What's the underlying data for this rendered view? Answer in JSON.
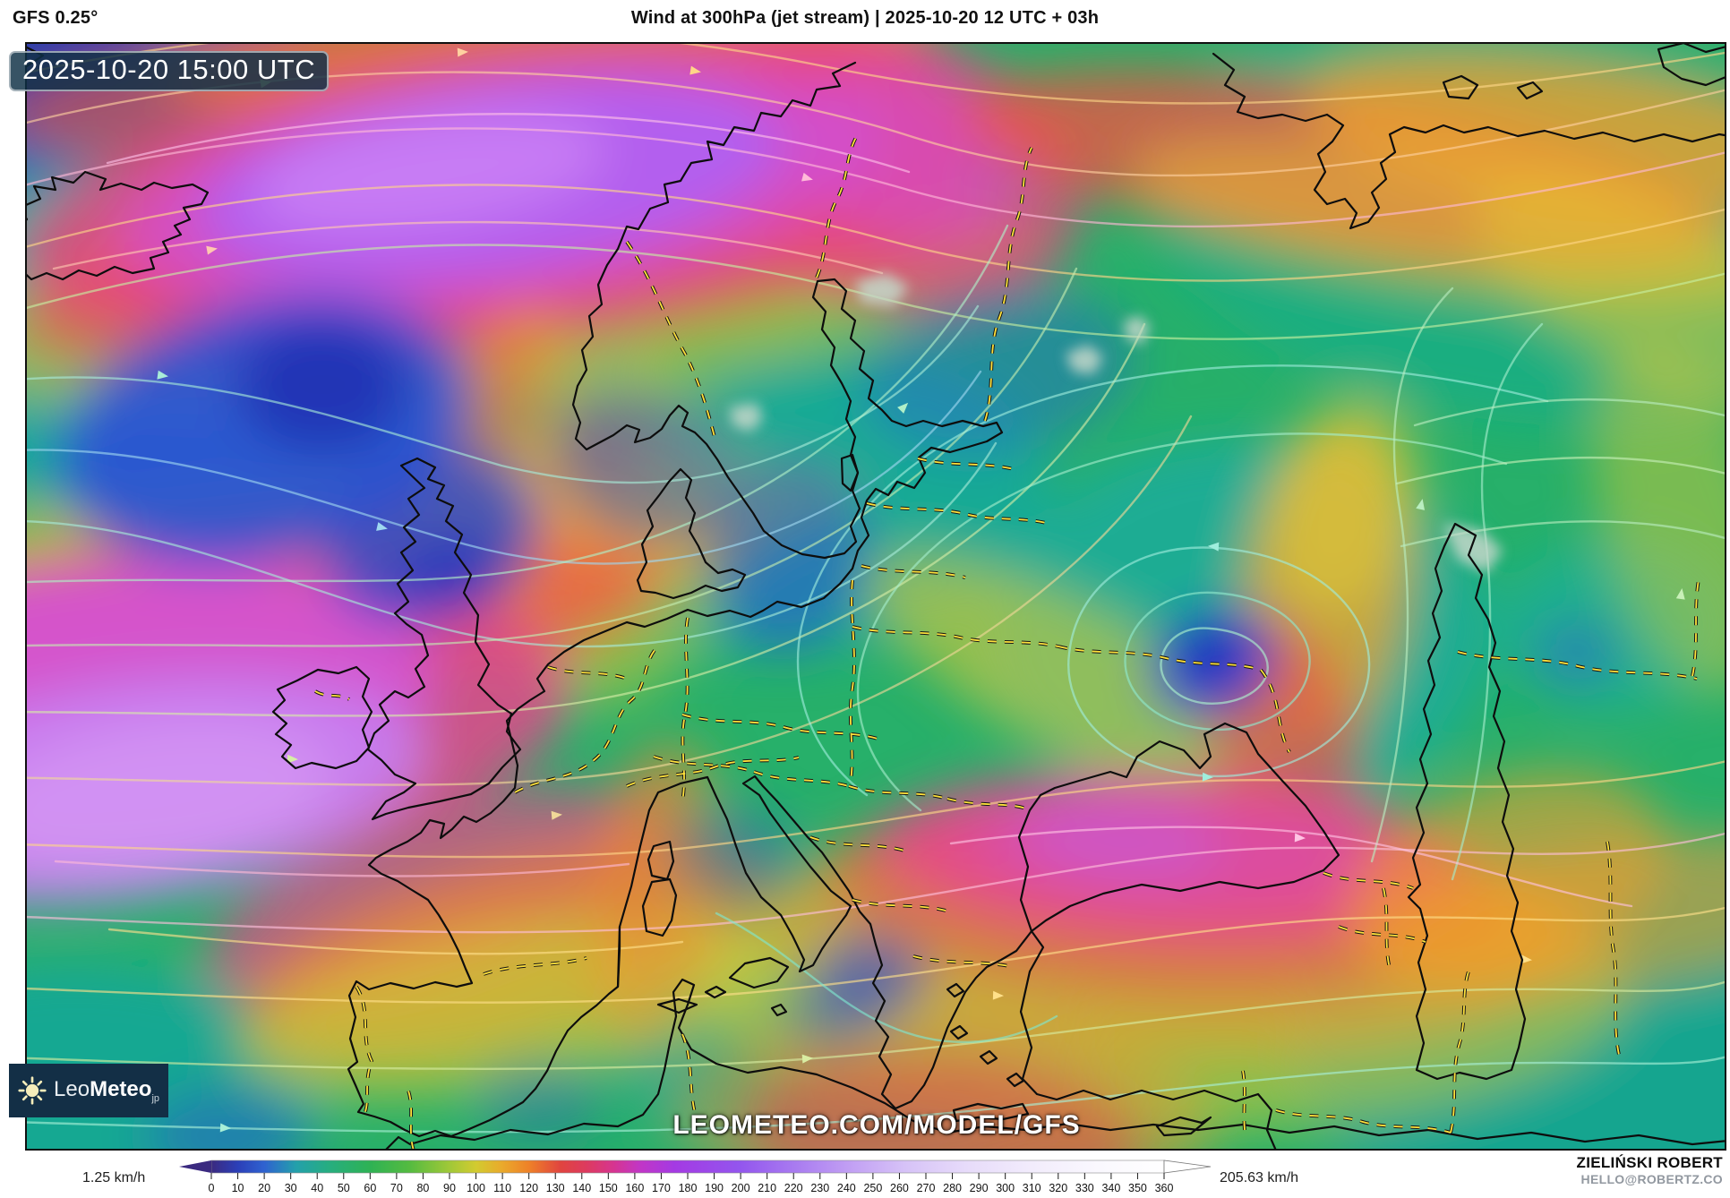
{
  "header": {
    "model": "GFS 0.25°",
    "title": "Wind at 300hPa (jet stream) | 2025-10-20 12 UTC + 03h"
  },
  "overlays": {
    "timestamp": "2025-10-20 15:00 UTC",
    "watermark": "LEOMETEO.COM/MODEL/GFS"
  },
  "logo": {
    "name_light": "Leo",
    "name_bold": "Meteo",
    "suffix": "jp"
  },
  "colorbar": {
    "unit": "km/h",
    "min_label": "1.25 km/h",
    "max_label": "205.63 km/h",
    "vmax": 360,
    "tick_values": [
      0,
      10,
      20,
      30,
      40,
      50,
      60,
      70,
      80,
      90,
      100,
      110,
      120,
      130,
      140,
      150,
      160,
      170,
      180,
      190,
      200,
      210,
      220,
      230,
      240,
      250,
      260,
      270,
      280,
      290,
      300,
      310,
      320,
      330,
      340,
      350,
      360
    ],
    "gradient_stops": [
      {
        "v": 0,
        "c": "#3b2a80"
      },
      {
        "v": 10,
        "c": "#2b3fb8"
      },
      {
        "v": 20,
        "c": "#2f62d0"
      },
      {
        "v": 32,
        "c": "#23a0ab"
      },
      {
        "v": 45,
        "c": "#27ae7e"
      },
      {
        "v": 60,
        "c": "#2eb254"
      },
      {
        "v": 75,
        "c": "#55bb40"
      },
      {
        "v": 90,
        "c": "#a0c838"
      },
      {
        "v": 100,
        "c": "#d2cb30"
      },
      {
        "v": 110,
        "c": "#eaa92b"
      },
      {
        "v": 120,
        "c": "#ee8128"
      },
      {
        "v": 132,
        "c": "#e0443f"
      },
      {
        "v": 142,
        "c": "#dd3a60"
      },
      {
        "v": 152,
        "c": "#d63590"
      },
      {
        "v": 162,
        "c": "#c136c6"
      },
      {
        "v": 175,
        "c": "#a43ae3"
      },
      {
        "v": 200,
        "c": "#9356ee"
      },
      {
        "v": 220,
        "c": "#a87af0"
      },
      {
        "v": 240,
        "c": "#c09df3"
      },
      {
        "v": 262,
        "c": "#d6c2f7"
      },
      {
        "v": 285,
        "c": "#e7dbfa"
      },
      {
        "v": 310,
        "c": "#f2ecfc"
      },
      {
        "v": 335,
        "c": "#faf8fe"
      },
      {
        "v": 360,
        "c": "#ffffff"
      }
    ]
  },
  "attribution": {
    "name": "ZIELIŃSKI ROBERT",
    "email": "HELLO@ROBERTZ.CO"
  }
}
